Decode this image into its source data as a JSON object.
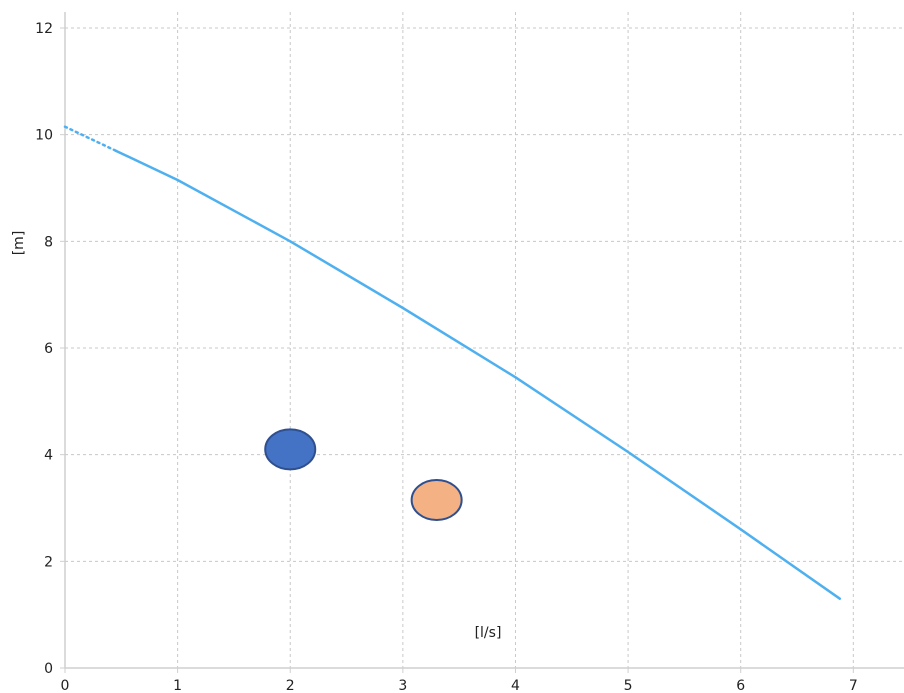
{
  "chart_data": {
    "type": "line",
    "title": "",
    "xlabel": "[l/s]",
    "ylabel": "[m]",
    "xlim": [
      0,
      7.45
    ],
    "ylim": [
      0,
      12.3
    ],
    "xticks": [
      0,
      1,
      2,
      3,
      4,
      5,
      6,
      7
    ],
    "yticks": [
      0,
      2,
      4,
      6,
      8,
      10,
      12
    ],
    "grid": true,
    "colors": {
      "curve": "#4fb0f0",
      "grid": "#c8c8c8",
      "axis": "#cfcfcf",
      "marker_blue_fill": "#4472c4",
      "marker_orange_fill": "#f4b183",
      "marker_stroke": "#2f4f8f"
    },
    "series": [
      {
        "style": "dotted",
        "x": [
          0.0,
          0.45
        ],
        "y": [
          10.15,
          9.7
        ]
      },
      {
        "style": "solid",
        "x": [
          0.45,
          1.0,
          2.0,
          3.0,
          4.0,
          5.0,
          6.0,
          6.88
        ],
        "y": [
          9.7,
          9.15,
          8.0,
          6.75,
          5.45,
          4.05,
          2.6,
          1.3
        ]
      }
    ],
    "markers": [
      {
        "shape": "ellipse",
        "color": "blue",
        "x": 2.0,
        "y": 4.1
      },
      {
        "shape": "ellipse",
        "color": "orange",
        "x": 3.3,
        "y": 3.15
      }
    ]
  }
}
